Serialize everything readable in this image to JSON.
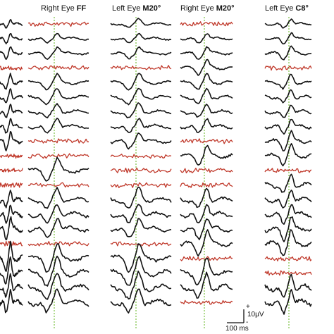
{
  "colors": {
    "normal": "#111111",
    "abnormal": "#c0392b",
    "marker": "#7bc043"
  },
  "panels": [
    {
      "id": "edge",
      "title_prefix": "",
      "title_bold": "",
      "traces": [
        "n",
        "n",
        "n",
        "r",
        "n",
        "n",
        "n",
        "n",
        "n",
        "r",
        "r",
        "r",
        "n",
        "n",
        "n",
        "r",
        "n",
        "n",
        "n",
        "n"
      ]
    },
    {
      "id": "right-ff",
      "title_prefix": "Right Eye ",
      "title_bold": "FF",
      "traces": [
        "r",
        "n",
        "n",
        "r",
        "n",
        "n",
        "n",
        "n",
        "r",
        "r",
        "n",
        "r",
        "n",
        "n",
        "n",
        "r",
        "n",
        "n",
        "n",
        "n"
      ]
    },
    {
      "id": "left-m20",
      "title_prefix": "Left Eye ",
      "title_bold": "M20°",
      "traces": [
        "n",
        "n",
        "n",
        "r",
        "n",
        "n",
        "n",
        "n",
        "n",
        "r",
        "r",
        "r",
        "n",
        "n",
        "n",
        "r",
        "n",
        "n",
        "n",
        "n"
      ]
    },
    {
      "id": "right-m20",
      "title_prefix": "Right Eye ",
      "title_bold": "M20°",
      "traces": [
        "r",
        "n",
        "n",
        "n",
        "n",
        "n",
        "n",
        "n",
        "r",
        "n",
        "r",
        "r",
        "n",
        "n",
        "n",
        "n",
        "r",
        "n",
        "n",
        "r"
      ]
    },
    {
      "id": "left-c8",
      "title_prefix": "Left Eye ",
      "title_bold": "C8°",
      "traces": [
        "n",
        "n",
        "n",
        "r",
        "n",
        "n",
        "n",
        "n",
        "n",
        "n",
        "r",
        "n",
        "n",
        "n",
        "n",
        "n",
        "r",
        "r",
        "n",
        "n"
      ]
    }
  ],
  "scale_bar": {
    "amplitude_label": "10μV",
    "time_label": "100 ms",
    "plus": "+",
    "minus": "-"
  }
}
